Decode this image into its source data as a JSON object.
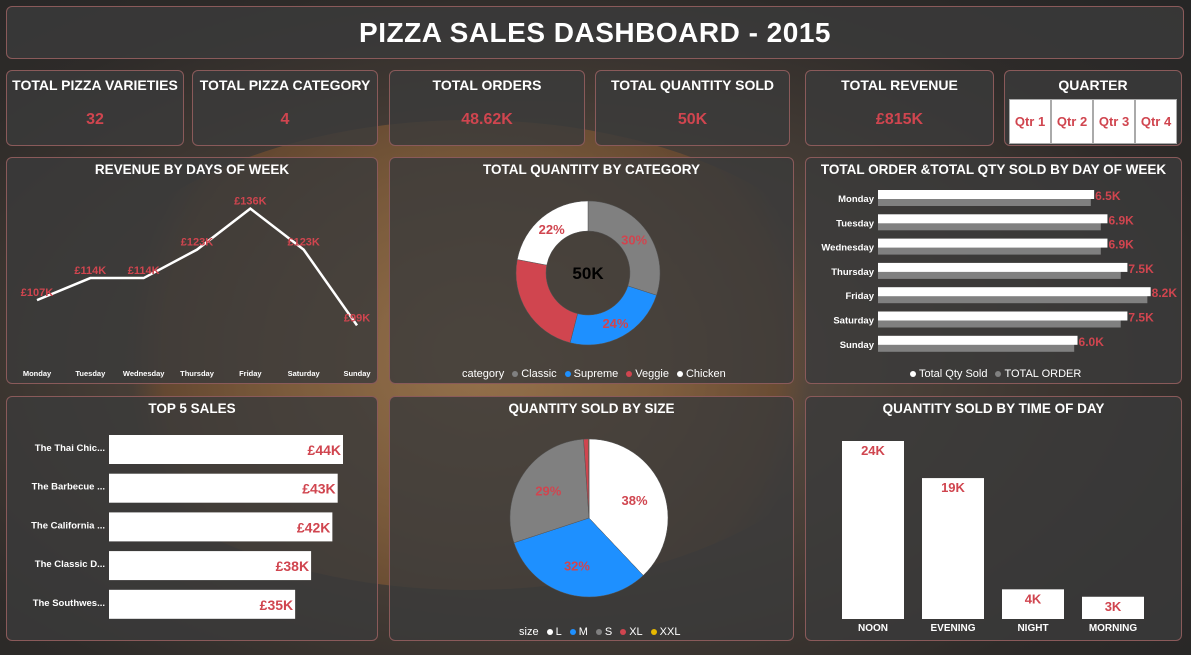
{
  "header": {
    "title": "PIZZA SALES DASHBOARD - 2015"
  },
  "kpis": [
    {
      "label": "TOTAL PIZZA VARIETIES",
      "value": "32"
    },
    {
      "label": "TOTAL PIZZA CATEGORY",
      "value": "4"
    },
    {
      "label": "TOTAL ORDERS",
      "value": "48.62K"
    },
    {
      "label": "TOTAL QUANTITY SOLD",
      "value": "50K"
    },
    {
      "label": "TOTAL REVENUE",
      "value": "£815K"
    }
  ],
  "quarter": {
    "label": "QUARTER",
    "options": [
      "Qtr 1",
      "Qtr 2",
      "Qtr 3",
      "Qtr 4"
    ]
  },
  "colors": {
    "accent": "#d0454f",
    "white": "#ffffff",
    "grey": "#808080",
    "blue": "#1e90ff",
    "red": "#d0454f",
    "yellow": "#e6b800"
  },
  "panels": {
    "revenue_by_day": "REVENUE BY DAYS OF WEEK",
    "qty_by_category": "TOTAL QUANTITY BY CATEGORY",
    "orders_qty_by_day": "TOTAL ORDER &TOTAL QTY SOLD BY DAY OF WEEK",
    "top5": "TOP 5 SALES",
    "qty_by_size": "QUANTITY SOLD BY SIZE",
    "qty_by_time": "QUANTITY SOLD BY TIME OF DAY"
  },
  "chart_data": [
    {
      "id": "revenue_by_day",
      "type": "line",
      "title": "REVENUE BY DAYS OF WEEK",
      "categories": [
        "Monday",
        "Tuesday",
        "Wednesday",
        "Thursday",
        "Friday",
        "Saturday",
        "Sunday"
      ],
      "values": [
        107,
        114,
        114,
        123,
        136,
        123,
        99
      ],
      "labels": [
        "£107K",
        "£114K",
        "£114K",
        "£123K",
        "£136K",
        "£123K",
        "£99K"
      ],
      "ylim": [
        95,
        140
      ]
    },
    {
      "id": "qty_by_category",
      "type": "pie",
      "title": "TOTAL QUANTITY BY CATEGORY",
      "center_label": "50K",
      "legend_title": "category",
      "slices": [
        {
          "name": "Classic",
          "value": 30,
          "label": "30%",
          "color": "#808080"
        },
        {
          "name": "Supreme",
          "value": 24,
          "label": "24%",
          "color": "#1e90ff"
        },
        {
          "name": "Veggie",
          "value": 24,
          "label": "",
          "color": "#d0454f"
        },
        {
          "name": "Chicken",
          "value": 22,
          "label": "22%",
          "color": "#ffffff"
        }
      ]
    },
    {
      "id": "orders_qty_by_day",
      "type": "bar",
      "title": "TOTAL ORDER &TOTAL QTY SOLD BY DAY OF WEEK",
      "categories": [
        "Monday",
        "Tuesday",
        "Wednesday",
        "Thursday",
        "Friday",
        "Saturday",
        "Sunday"
      ],
      "series": [
        {
          "name": "Total Qty Sold",
          "values": [
            6.5,
            6.9,
            6.9,
            7.5,
            8.2,
            7.5,
            6.0
          ],
          "labels": [
            "6.5K",
            "6.9K",
            "6.9K",
            "7.5K",
            "8.2K",
            "7.5K",
            "6.0K"
          ]
        },
        {
          "name": "TOTAL ORDER",
          "values": [
            6.4,
            6.7,
            6.7,
            7.3,
            8.1,
            7.3,
            5.9
          ]
        }
      ],
      "xlim": [
        0,
        8.3
      ]
    },
    {
      "id": "top5",
      "type": "bar",
      "title": "TOP 5 SALES",
      "categories": [
        "The Thai Chic...",
        "The Barbecue ...",
        "The California ...",
        "The Classic D...",
        "The Southwes..."
      ],
      "values": [
        44,
        43,
        42,
        38,
        35
      ],
      "labels": [
        "£44K",
        "£43K",
        "£42K",
        "£38K",
        "£35K"
      ],
      "xlim": [
        0,
        44
      ]
    },
    {
      "id": "qty_by_size",
      "type": "pie",
      "title": "QUANTITY SOLD BY SIZE",
      "legend_title": "size",
      "slices": [
        {
          "name": "L",
          "value": 38,
          "label": "38%",
          "color": "#ffffff"
        },
        {
          "name": "M",
          "value": 32,
          "label": "32%",
          "color": "#1e90ff"
        },
        {
          "name": "S",
          "value": 29,
          "label": "29%",
          "color": "#808080"
        },
        {
          "name": "XL",
          "value": 1,
          "label": "",
          "color": "#d0454f"
        },
        {
          "name": "XXL",
          "value": 0.1,
          "label": "",
          "color": "#e6b800"
        }
      ]
    },
    {
      "id": "qty_by_time",
      "type": "bar",
      "title": "QUANTITY SOLD BY TIME OF DAY",
      "categories": [
        "NOON",
        "EVENING",
        "NIGHT",
        "MORNING"
      ],
      "values": [
        24,
        19,
        4,
        3
      ],
      "labels": [
        "24K",
        "19K",
        "4K",
        "3K"
      ],
      "ylim": [
        0,
        24
      ]
    }
  ]
}
